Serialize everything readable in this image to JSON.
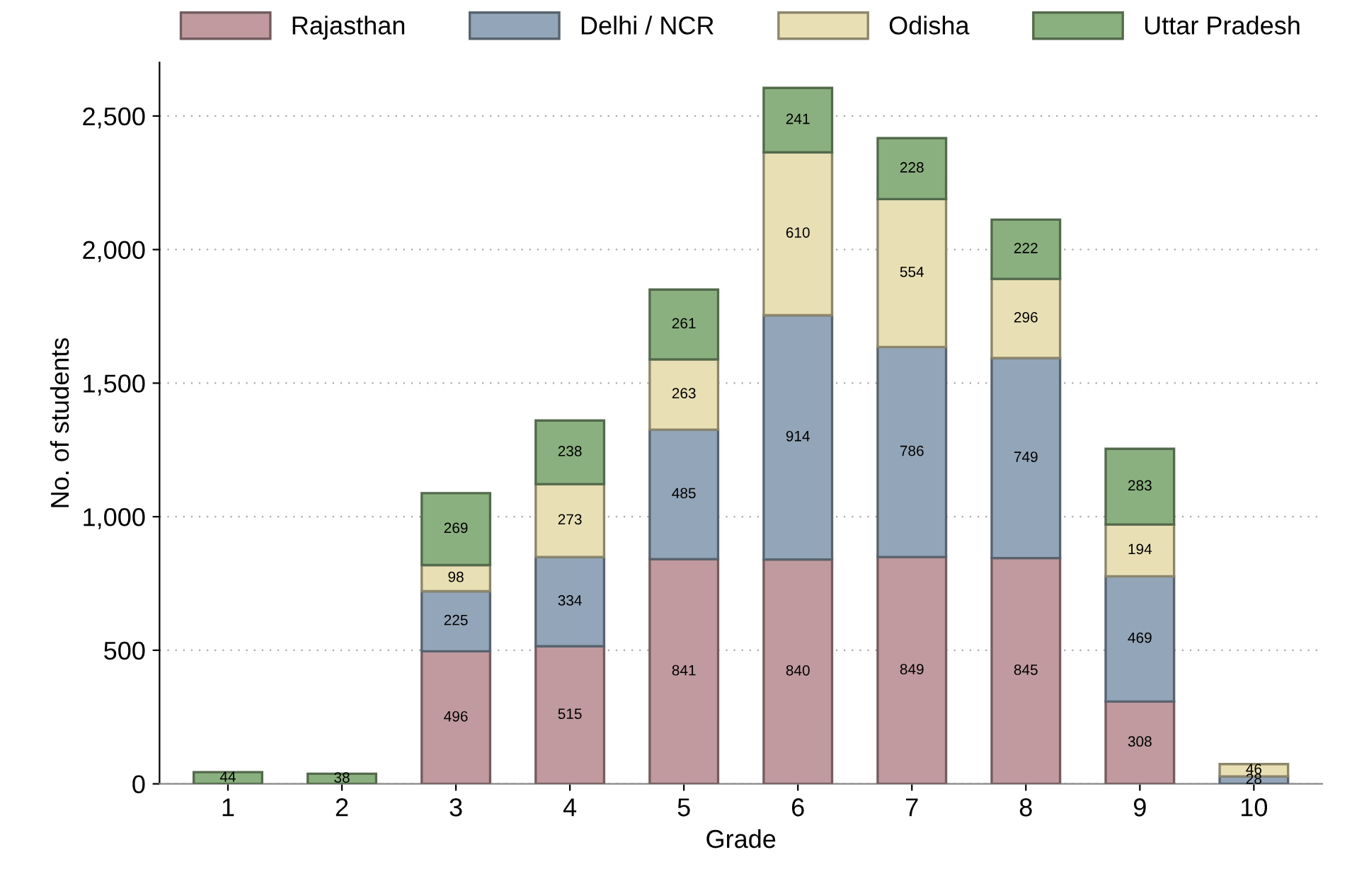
{
  "chart_data": {
    "type": "bar",
    "stacked": true,
    "xlabel": "Grade",
    "ylabel": "No. of students",
    "categories": [
      "1",
      "2",
      "3",
      "4",
      "5",
      "6",
      "7",
      "8",
      "9",
      "10"
    ],
    "series": [
      {
        "name": "Rajasthan",
        "color": "#c09a9e",
        "values": [
          null,
          null,
          496,
          515,
          841,
          840,
          849,
          845,
          308,
          null
        ]
      },
      {
        "name": "Delhi / NCR",
        "color": "#93a5b8",
        "values": [
          null,
          null,
          225,
          334,
          485,
          914,
          786,
          749,
          469,
          28
        ]
      },
      {
        "name": "Odisha",
        "color": "#e8dfb4",
        "values": [
          null,
          null,
          98,
          273,
          263,
          610,
          554,
          296,
          194,
          46
        ]
      },
      {
        "name": "Uttar Pradesh",
        "color": "#8bb07f",
        "values": [
          44,
          38,
          269,
          238,
          261,
          241,
          228,
          222,
          283,
          null
        ]
      }
    ],
    "ylim": [
      0,
      2700
    ],
    "yticks": [
      0,
      500,
      {
        "value": 1000,
        "label": "1,000"
      },
      {
        "value": 1500,
        "label": "1,500"
      },
      {
        "value": 2000,
        "label": "2,000"
      },
      {
        "value": 2500,
        "label": "2,500"
      }
    ],
    "grid": "y",
    "legend": "top",
    "data_labels": true
  }
}
